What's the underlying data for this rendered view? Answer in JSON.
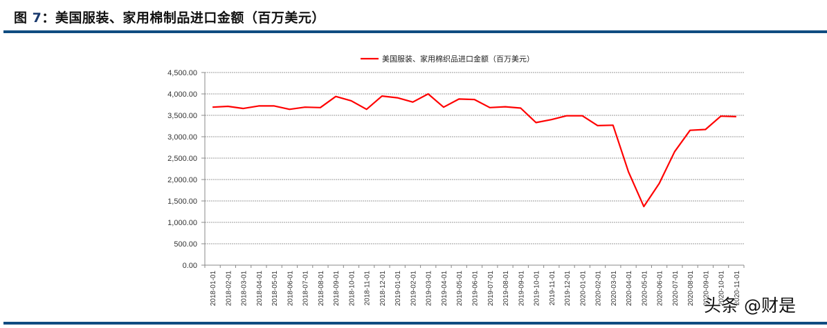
{
  "figure": {
    "title_prefix": "图",
    "title_number": "7",
    "title_text": "：美国服装、家用棉制品进口金额（百万美元）"
  },
  "watermark": "头条 @财是",
  "colors": {
    "series": "#ff0000",
    "rule": "#0f4c81",
    "grid": "#9a9a9a",
    "axis": "#888888"
  },
  "chart_data": {
    "type": "line",
    "title": "",
    "xlabel": "",
    "ylabel": "",
    "ylim": [
      0,
      4500
    ],
    "yticks": [
      0,
      500,
      1000,
      1500,
      2000,
      2500,
      3000,
      3500,
      4000,
      4500
    ],
    "ytick_labels": [
      "0.00",
      "500.00",
      "1,000.00",
      "1,500.00",
      "2,000.00",
      "2,500.00",
      "3,000.00",
      "3,500.00",
      "4,000.00",
      "4,500.00"
    ],
    "grid": "horizontal dashed",
    "legend_position": "top",
    "x": [
      "2018-01-01",
      "2018-02-01",
      "2018-03-01",
      "2018-04-01",
      "2018-05-01",
      "2018-06-01",
      "2018-07-01",
      "2018-08-01",
      "2018-09-01",
      "2018-10-01",
      "2018-11-01",
      "2018-12-01",
      "2019-01-01",
      "2019-02-01",
      "2019-03-01",
      "2019-04-01",
      "2019-05-01",
      "2019-06-01",
      "2019-07-01",
      "2019-08-01",
      "2019-09-01",
      "2019-10-01",
      "2019-11-01",
      "2019-12-01",
      "2020-01-01",
      "2020-02-01",
      "2020-03-01",
      "2020-04-01",
      "2020-05-01",
      "2020-06-01",
      "2020-07-01",
      "2020-08-01",
      "2020-09-01",
      "2020-10-01",
      "2020-11-01"
    ],
    "series": [
      {
        "name": "美国服装、家用棉织品进口金额（百万美元）",
        "color": "#ff0000",
        "values": [
          3690,
          3710,
          3660,
          3720,
          3720,
          3640,
          3690,
          3680,
          3940,
          3840,
          3640,
          3950,
          3910,
          3810,
          4000,
          3690,
          3880,
          3870,
          3680,
          3700,
          3670,
          3330,
          3400,
          3490,
          3490,
          3260,
          3270,
          2180,
          1370,
          1910,
          2650,
          3150,
          3170,
          3480,
          3470
        ]
      }
    ]
  }
}
